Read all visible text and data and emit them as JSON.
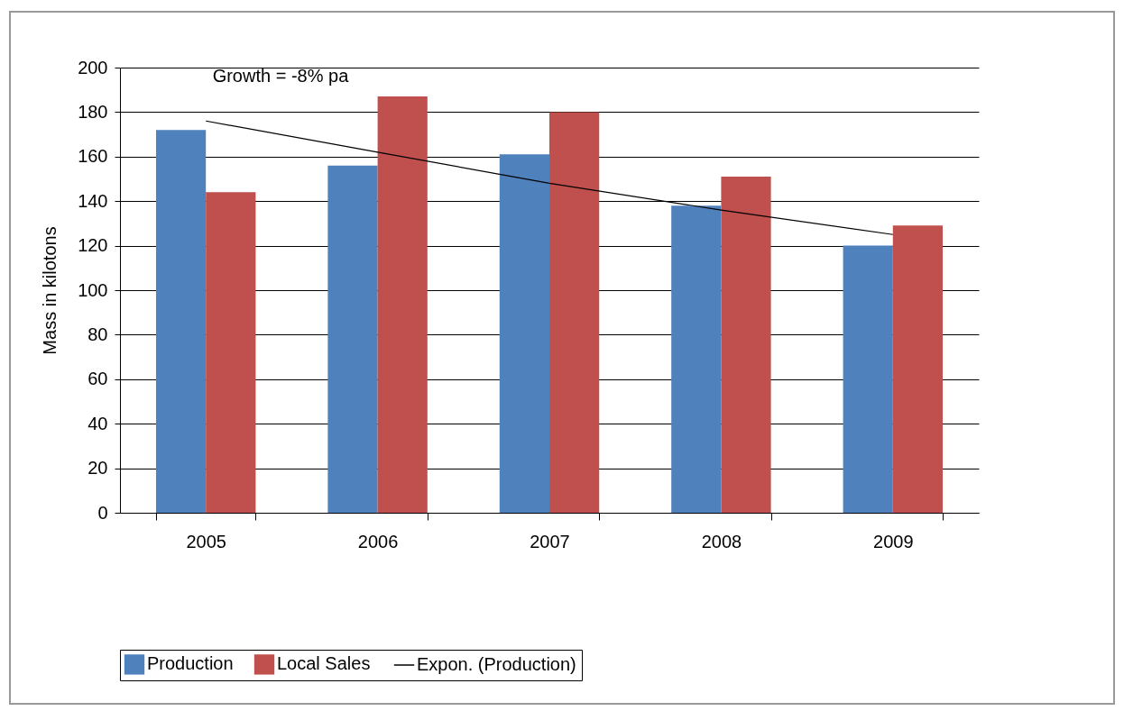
{
  "chart_data": {
    "type": "bar",
    "ylabel": "Mass in kilotons",
    "categories": [
      "2005",
      "2006",
      "2007",
      "2008",
      "2009"
    ],
    "series": [
      {
        "name": "Production",
        "color": "#4f81bd",
        "values": [
          172,
          156,
          161,
          138,
          120
        ]
      },
      {
        "name": "Local Sales",
        "color": "#c0504d",
        "values": [
          144,
          187,
          180,
          151,
          129
        ]
      },
      {
        "name": "Expon. (Production)",
        "type": "line",
        "color": "#000000",
        "values": [
          176,
          162,
          148,
          136,
          125
        ]
      }
    ],
    "ylim": [
      0,
      200
    ],
    "yticks": [
      0,
      20,
      40,
      60,
      80,
      100,
      120,
      140,
      160,
      180,
      200
    ],
    "grid": "y",
    "legend": "bottom",
    "annotations": [
      "Growth = -8% pa"
    ]
  }
}
